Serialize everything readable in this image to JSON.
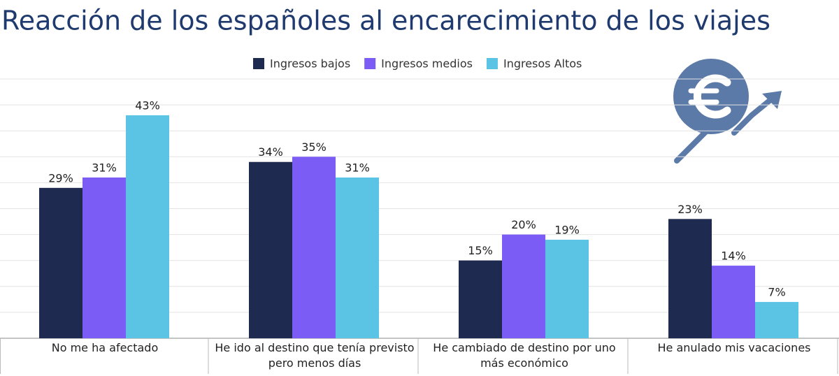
{
  "chart_data": {
    "type": "bar",
    "title": "Reacción de los españoles al encarecimiento de los viajes",
    "categories": [
      "No me ha afectado",
      "He ido al destino que tenía previsto pero menos días",
      "He cambiado de destino por uno más económico",
      "He anulado mis vacaciones"
    ],
    "series": [
      {
        "name": "Ingresos bajos",
        "color": "#1e2a50",
        "values": [
          29,
          34,
          15,
          23
        ],
        "value_labels": [
          "29%",
          "34%",
          "15%",
          "23%"
        ]
      },
      {
        "name": "Ingresos medios",
        "color": "#7b5cf5",
        "values": [
          31,
          35,
          20,
          14
        ],
        "value_labels": [
          "31%",
          "35%",
          "20%",
          "14%"
        ]
      },
      {
        "name": "Ingresos Altos",
        "color": "#5bc4e5",
        "values": [
          43,
          31,
          19,
          7
        ],
        "value_labels": [
          "43%",
          "31%",
          "19%",
          "7%"
        ]
      }
    ],
    "ylim": [
      0,
      50
    ],
    "yticks": [
      0,
      5,
      10,
      15,
      20,
      25,
      30,
      35,
      40,
      45,
      50
    ],
    "grid": true,
    "legend": "top"
  }
}
